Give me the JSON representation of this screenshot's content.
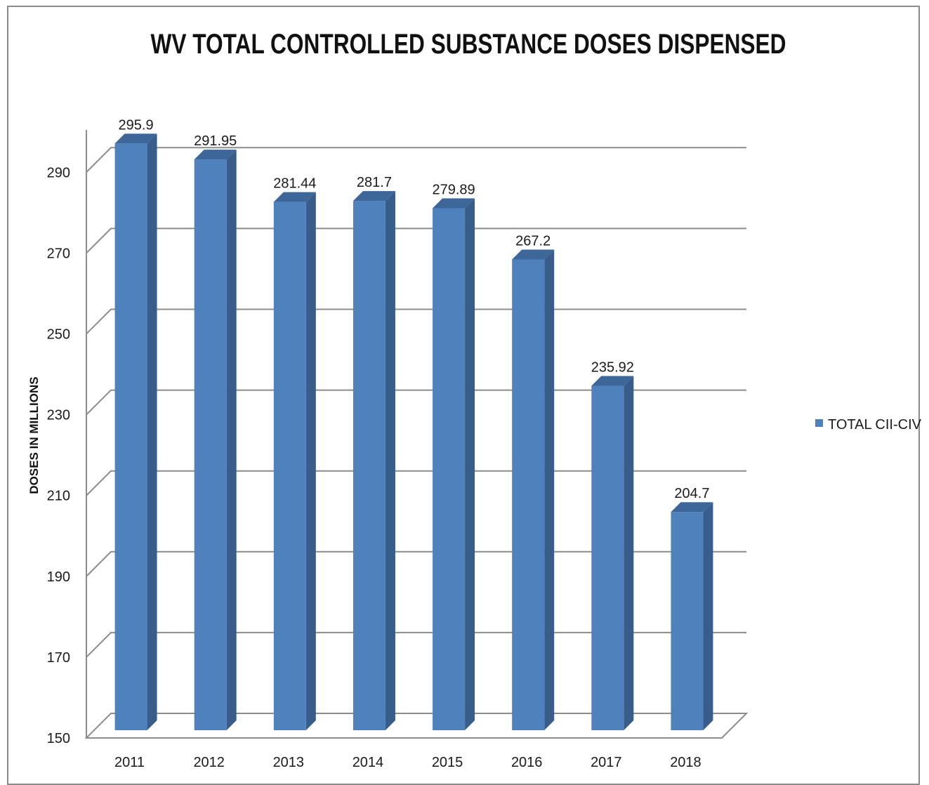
{
  "chart_data": {
    "type": "bar",
    "title": "WV TOTAL CONTROLLED SUBSTANCE DOSES DISPENSED",
    "ylabel": "DOSES IN MILLIONS",
    "xlabel": "",
    "categories": [
      "2011",
      "2012",
      "2013",
      "2014",
      "2015",
      "2016",
      "2017",
      "2018"
    ],
    "series": [
      {
        "name": "TOTAL CII-CIV",
        "values": [
          295.9,
          291.95,
          281.44,
          281.7,
          279.89,
          267.2,
          235.92,
          204.7
        ],
        "labels": [
          "295.9",
          "291.95",
          "281.44",
          "281.7",
          "279.89",
          "267.2",
          "235.92",
          "204.7"
        ]
      }
    ],
    "y_ticks": [
      150,
      170,
      190,
      210,
      230,
      250,
      270,
      290
    ],
    "ylim": [
      150,
      300
    ],
    "grid": true,
    "legend": "right",
    "style": "3d-column"
  },
  "colors": {
    "bar_front": "#4f81bd",
    "bar_side": "#385d8a",
    "bar_top": "#3d6699",
    "grid": "#8c8c8c",
    "text": "#1a1a1a"
  }
}
